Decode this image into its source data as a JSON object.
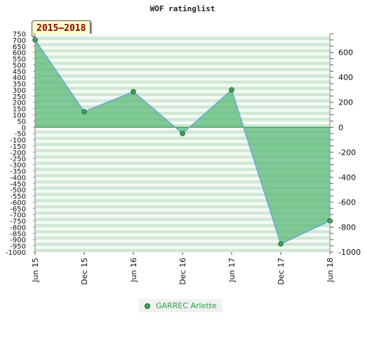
{
  "chart_data": {
    "type": "area",
    "title": "WOF ratinglist",
    "badge": "2015–2018",
    "categories": [
      "Jun 15",
      "Dec 15",
      "Jun 16",
      "Dec 16",
      "Jun 17",
      "Dec 17",
      "Jun 18"
    ],
    "series": [
      {
        "name": "GARREC Arlette",
        "values": [
          700,
          125,
          285,
          -50,
          300,
          -935,
          -750
        ]
      }
    ],
    "ylim": [
      -1000,
      750
    ],
    "left_ticks": [
      750,
      700,
      650,
      600,
      550,
      500,
      450,
      400,
      350,
      300,
      250,
      200,
      150,
      100,
      50,
      0,
      -50,
      -100,
      -150,
      -200,
      -250,
      -300,
      -350,
      -400,
      -450,
      -500,
      -550,
      -600,
      -650,
      -700,
      -750,
      -800,
      -850,
      -900,
      -950,
      -1000
    ],
    "right_ticks": [
      600,
      400,
      200,
      0,
      -200,
      -400,
      -600,
      -800,
      -1000
    ],
    "colors": {
      "fill": "#5bb97a",
      "line": "#6aa6d8",
      "marker": "#3fa85b",
      "stripe_dark": "#cfe8d4",
      "stripe_light": "#f3faf4"
    }
  }
}
